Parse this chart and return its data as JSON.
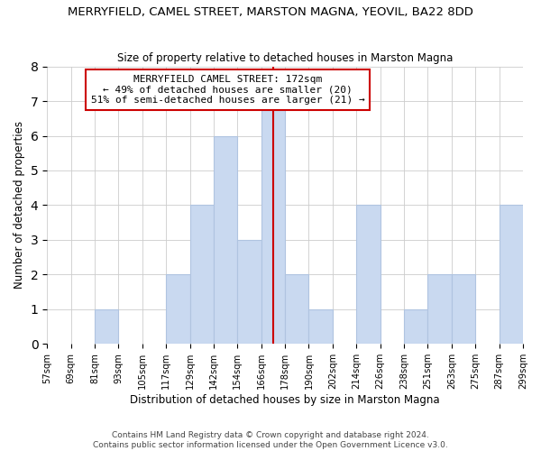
{
  "title": "MERRYFIELD, CAMEL STREET, MARSTON MAGNA, YEOVIL, BA22 8DD",
  "subtitle": "Size of property relative to detached houses in Marston Magna",
  "xlabel": "Distribution of detached houses by size in Marston Magna",
  "ylabel": "Number of detached properties",
  "footer_line1": "Contains HM Land Registry data © Crown copyright and database right 2024.",
  "footer_line2": "Contains public sector information licensed under the Open Government Licence v3.0.",
  "bin_edges_idx": [
    0,
    1,
    2,
    3,
    4,
    5,
    6,
    7,
    8,
    9,
    10,
    11,
    12,
    13,
    14,
    15,
    16,
    17,
    18,
    19,
    20
  ],
  "bar_heights": [
    0,
    0,
    1,
    0,
    0,
    2,
    4,
    6,
    3,
    7,
    2,
    1,
    0,
    4,
    0,
    1,
    2,
    2,
    0,
    4
  ],
  "bar_color": "#c9d9f0",
  "bar_edge_color": "#b0c4e0",
  "reference_line_color": "#cc0000",
  "annotation_title": "MERRYFIELD CAMEL STREET: 172sqm",
  "annotation_line1": "← 49% of detached houses are smaller (20)",
  "annotation_line2": "51% of semi-detached houses are larger (21) →",
  "annotation_box_edge_color": "#cc0000",
  "annotation_box_face_color": "#ffffff",
  "ylim": [
    0,
    8
  ],
  "tick_labels": [
    "57sqm",
    "69sqm",
    "81sqm",
    "93sqm",
    "105sqm",
    "117sqm",
    "129sqm",
    "142sqm",
    "154sqm",
    "166sqm",
    "178sqm",
    "190sqm",
    "202sqm",
    "214sqm",
    "226sqm",
    "238sqm",
    "251sqm",
    "263sqm",
    "275sqm",
    "287sqm",
    "299sqm"
  ],
  "title_fontsize": 9.5,
  "subtitle_fontsize": 8.5,
  "xlabel_fontsize": 8.5,
  "ylabel_fontsize": 8.5,
  "tick_fontsize": 7.2,
  "annotation_fontsize": 8.0,
  "footer_fontsize": 6.5
}
